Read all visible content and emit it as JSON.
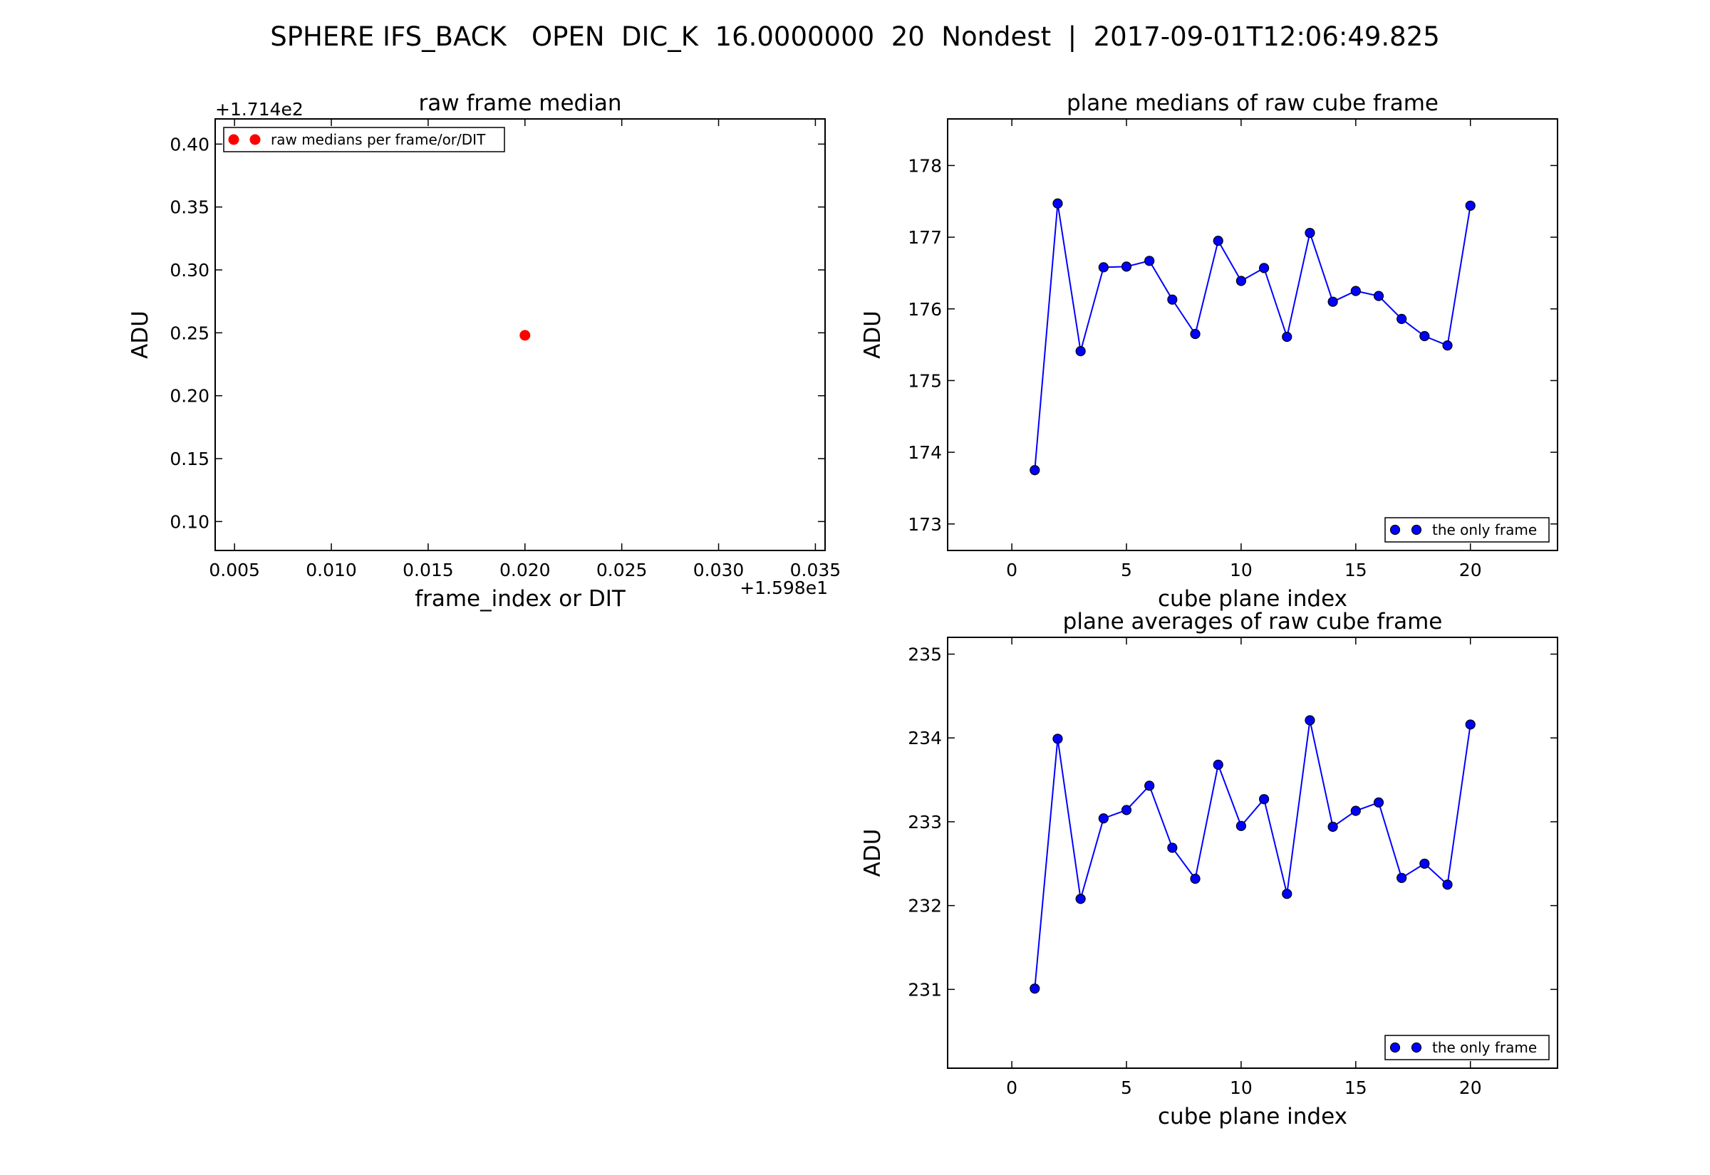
{
  "figure": {
    "suptitle": "SPHERE IFS_BACK   OPEN  DIC_K  16.0000000  20  Nondest  |  2017-09-01T12:06:49.825"
  },
  "chart_data": [
    {
      "id": "raw-median",
      "type": "scatter",
      "title": "raw frame median",
      "xlabel": "frame_index or DIT",
      "ylabel": "ADU",
      "x_offset_label": "+1.598e1",
      "y_offset_label": "+1.714e2",
      "xlim": [
        0.004,
        0.0355
      ],
      "ylim": [
        0.077,
        0.42
      ],
      "xticks": [
        0.005,
        0.01,
        0.015,
        0.02,
        0.025,
        0.03,
        0.035
      ],
      "xtick_labels": [
        "0.005",
        "0.010",
        "0.015",
        "0.020",
        "0.025",
        "0.030",
        "0.035"
      ],
      "yticks": [
        0.1,
        0.15,
        0.2,
        0.25,
        0.3,
        0.35,
        0.4
      ],
      "ytick_labels": [
        "0.10",
        "0.15",
        "0.20",
        "0.25",
        "0.30",
        "0.35",
        "0.40"
      ],
      "series": [
        {
          "name": "raw medians per frame/or/DIT",
          "color": "#ff0000",
          "marker": "circle",
          "line": false,
          "x": [
            0.02
          ],
          "y": [
            0.248
          ]
        }
      ],
      "legend": "top-left"
    },
    {
      "id": "plane-medians",
      "type": "line",
      "title": "plane medians of raw cube frame",
      "xlabel": "cube plane index",
      "ylabel": "ADU",
      "xlim": [
        -2.8,
        23.8
      ],
      "ylim": [
        172.63,
        178.65
      ],
      "xticks": [
        0,
        5,
        10,
        15,
        20
      ],
      "xtick_labels": [
        "0",
        "5",
        "10",
        "15",
        "20"
      ],
      "yticks": [
        173,
        174,
        175,
        176,
        177,
        178
      ],
      "ytick_labels": [
        "173",
        "174",
        "175",
        "176",
        "177",
        "178"
      ],
      "series": [
        {
          "name": "the only frame",
          "color": "#0000ff",
          "marker": "circle",
          "line": true,
          "x": [
            1,
            2,
            3,
            4,
            5,
            6,
            7,
            8,
            9,
            10,
            11,
            12,
            13,
            14,
            15,
            16,
            17,
            18,
            19,
            20
          ],
          "y": [
            173.75,
            177.47,
            175.41,
            176.58,
            176.59,
            176.67,
            176.13,
            175.65,
            176.95,
            176.39,
            176.57,
            175.61,
            177.06,
            176.1,
            176.25,
            176.18,
            175.86,
            175.62,
            175.49,
            177.44
          ]
        }
      ],
      "legend": "bottom-right"
    },
    {
      "id": "plane-averages",
      "type": "line",
      "title": "plane averages of raw cube frame",
      "xlabel": "cube plane index",
      "ylabel": "ADU",
      "xlim": [
        -2.8,
        23.8
      ],
      "ylim": [
        230.06,
        235.2
      ],
      "xticks": [
        0,
        5,
        10,
        15,
        20
      ],
      "xtick_labels": [
        "0",
        "5",
        "10",
        "15",
        "20"
      ],
      "yticks": [
        231,
        232,
        233,
        234,
        235
      ],
      "ytick_labels": [
        "231",
        "232",
        "233",
        "234",
        "235"
      ],
      "series": [
        {
          "name": "the only frame",
          "color": "#0000ff",
          "marker": "circle",
          "line": true,
          "x": [
            1,
            2,
            3,
            4,
            5,
            6,
            7,
            8,
            9,
            10,
            11,
            12,
            13,
            14,
            15,
            16,
            17,
            18,
            19,
            20
          ],
          "y": [
            231.01,
            233.99,
            232.08,
            233.04,
            233.14,
            233.43,
            232.69,
            232.32,
            233.68,
            232.95,
            233.27,
            232.14,
            234.21,
            232.94,
            233.13,
            233.23,
            232.33,
            232.5,
            232.25,
            234.16
          ]
        }
      ],
      "legend": "bottom-right"
    }
  ]
}
